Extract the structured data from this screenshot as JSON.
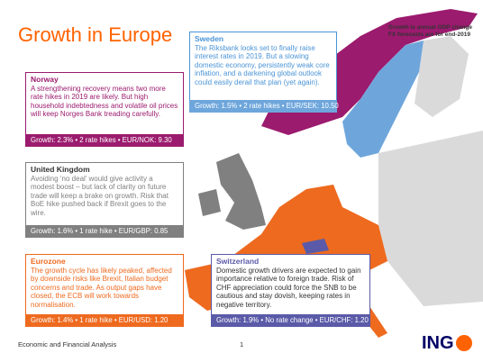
{
  "header": {
    "title": "Growth in Europe",
    "note": [
      "Growth is annual GDP change",
      "FX forecasts are for end-2019"
    ]
  },
  "regions": [
    {
      "name": "Sweden",
      "text": "The Riksbank looks set to finally raise interest rates in 2019. But a slowing domestic economy, persistently weak core inflation, and a darkening global outlook could easily derail that plan (yet again).",
      "stats": "Growth: 1.5% • 2 rate hikes • EUR/SEK: 10.50"
    },
    {
      "name": "Norway",
      "text": "A strengthening recovery means two more rate hikes in 2019 are likely. But high household indebtedness and volatile oil prices will keep Norges Bank treading carefully.",
      "stats": "Growth: 2.3% • 2 rate hikes • EUR/NOK: 9.30"
    },
    {
      "name": "United Kingdom",
      "text": "Avoiding ‘no deal’ would give activity a modest boost – but lack of clarity on future trade will keep a brake on growth. Risk that BoE hike pushed back if Brexit goes to the wire.",
      "stats": "Growth: 1.6% • 1 rate hike • EUR/GBP: 0.85"
    },
    {
      "name": "Eurozone",
      "text": "The growth cycle has likely peaked, affected by downside risks like Brexit, Italian budget concerns and trade. As output gaps have closed, the ECB will work towards normalisation.",
      "stats": "Growth: 1.4% • 1 rate hike • EUR/USD: 1.20"
    },
    {
      "name": "Switzerland",
      "text": "Domestic growth drivers are expected to gain importance relative to foreign trade. Risk of CHF appreciation could force the SNB to be cautious and stay dovish, keeping rates in negative territory.",
      "stats": "Growth: 1.9% • No rate change • EUR/CHF: 1.20"
    }
  ],
  "footer": {
    "source": "Economic and Financial Analysis",
    "page": "1",
    "logo": "ING"
  }
}
